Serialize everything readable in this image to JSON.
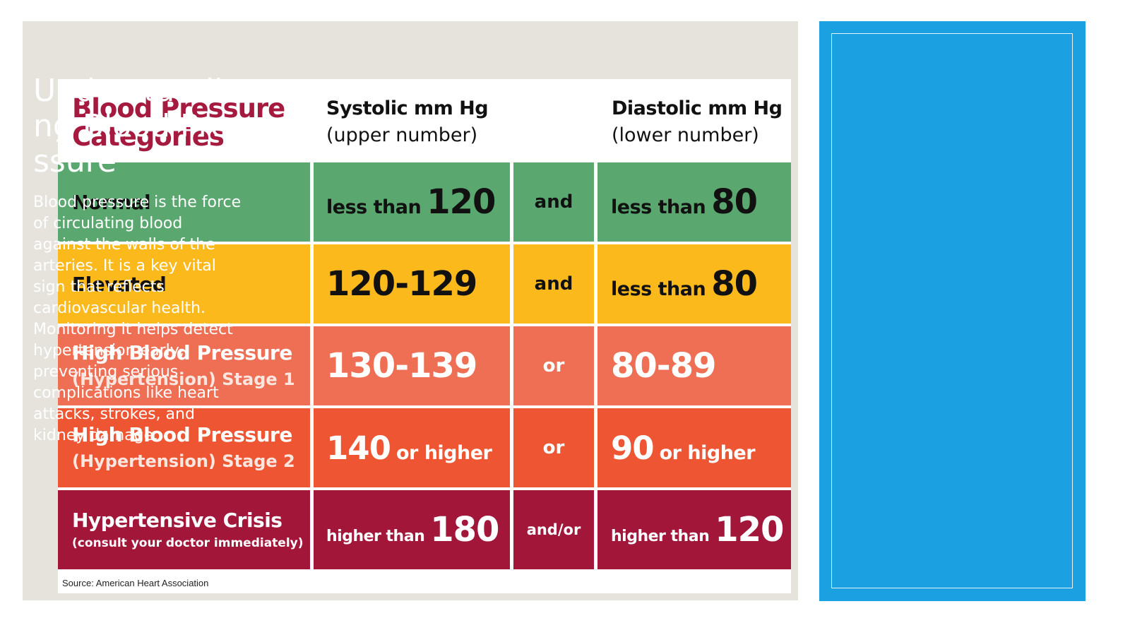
{
  "chart": {
    "title_line1": "Blood Pressure",
    "title_line2": "Categories",
    "systolic_header": "Systolic mm Hg",
    "systolic_sub": "(upper number)",
    "diastolic_header": "Diastolic mm Hg",
    "diastolic_sub": "(lower number)",
    "rows": [
      {
        "category": "Normal",
        "systolic_prefix": "less than",
        "systolic_value": "120",
        "conjunction": "and",
        "diastolic_prefix": "less than",
        "diastolic_value": "80",
        "color": "#5aa870"
      },
      {
        "category": "Elevated",
        "systolic_value": "120-129",
        "conjunction": "and",
        "diastolic_prefix": "less than",
        "diastolic_value": "80",
        "color": "#fbb91b"
      },
      {
        "category_line1": "High Blood Pressure",
        "category_line2": "(Hypertension) Stage 1",
        "systolic_value": "130-139",
        "conjunction": "or",
        "diastolic_value": "80-89",
        "color": "#ef6f55"
      },
      {
        "category_line1": "High Blood Pressure",
        "category_line2": "(Hypertension) Stage 2",
        "systolic_value": "140",
        "systolic_suffix": "or higher",
        "conjunction": "or",
        "diastolic_value": "90",
        "diastolic_suffix": "or higher",
        "color": "#ee5533"
      },
      {
        "category_line1": "Hypertensive Crisis",
        "category_line2": "(consult your doctor immediately)",
        "systolic_prefix": "higher than",
        "systolic_value": "180",
        "conjunction": "and/or",
        "diastolic_prefix": "higher than",
        "diastolic_value": "120",
        "color": "#a2163a"
      }
    ],
    "source": "Source: American Heart Association"
  },
  "sidebar": {
    "title": "Understanding Blood Pressure",
    "body": "Blood pressure is the force of circulating blood against the walls of the arteries. It is a key vital sign that reflects cardiovascular health. Monitoring it helps detect hypertension early, preventing serious complications like heart attacks, strokes, and kidney damage."
  },
  "colors": {
    "title_red": "#a51a3e",
    "panel_blue": "#1ba1e2",
    "panel_gray": "#e6e3dd"
  }
}
